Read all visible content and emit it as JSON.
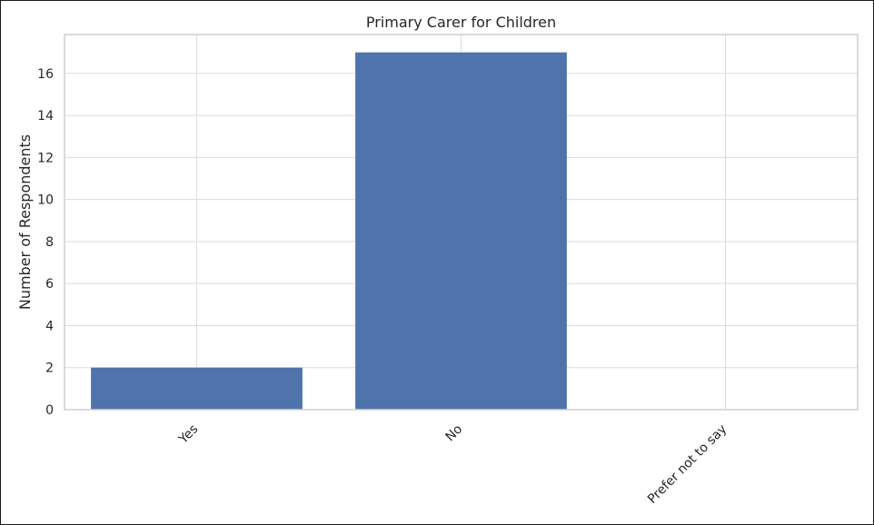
{
  "chart_data": {
    "type": "bar",
    "title": "Primary Carer for Children",
    "xlabel": "",
    "ylabel": "Number of Respondents",
    "categories": [
      "Yes",
      "No",
      "Prefer not to say"
    ],
    "values": [
      2,
      17,
      0
    ],
    "ylim": [
      0,
      17.85
    ],
    "yticks": [
      "0",
      "2",
      "4",
      "6",
      "8",
      "10",
      "12",
      "14",
      "16"
    ],
    "grid": true,
    "legend": "none",
    "bar_color": "#4f74ab"
  }
}
